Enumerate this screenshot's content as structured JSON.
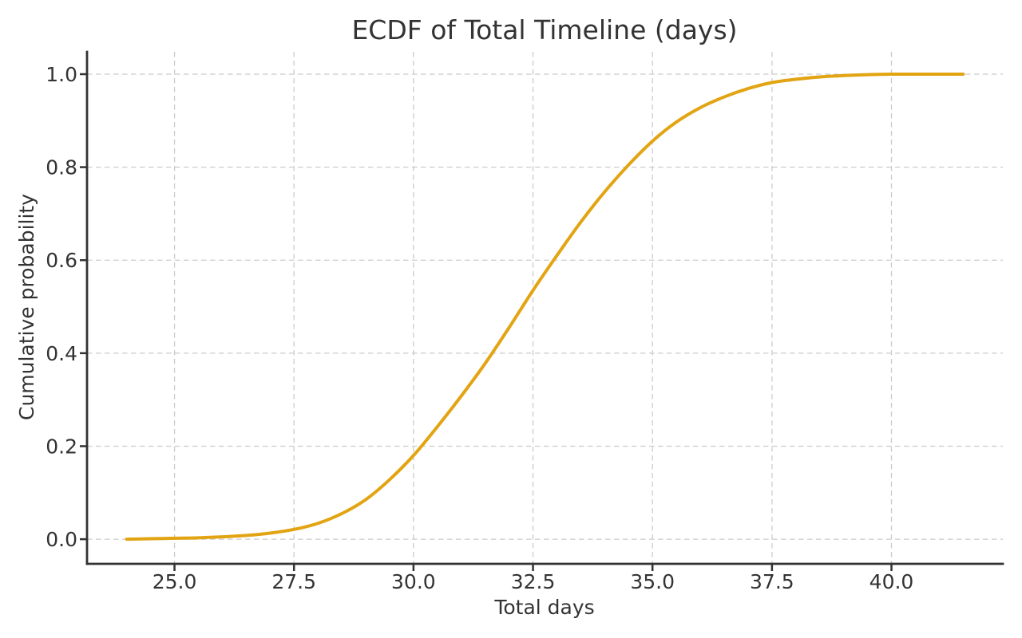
{
  "chart_data": {
    "type": "line",
    "title": "ECDF of Total Timeline (days)",
    "xlabel": "Total days",
    "ylabel": "Cumulative probability",
    "xlim": [
      23.17,
      42.33
    ],
    "ylim": [
      -0.053,
      1.048
    ],
    "x_ticks": [
      25.0,
      27.5,
      30.0,
      32.5,
      35.0,
      37.5,
      40.0
    ],
    "x_tick_labels": [
      "25.0",
      "27.5",
      "30.0",
      "32.5",
      "35.0",
      "37.5",
      "40.0"
    ],
    "y_ticks": [
      0.0,
      0.2,
      0.4,
      0.6,
      0.8,
      1.0
    ],
    "y_tick_labels": [
      "0.0",
      "0.2",
      "0.4",
      "0.6",
      "0.8",
      "1.0"
    ],
    "grid": true,
    "grid_style": "dashed",
    "legend": "none",
    "series": [
      {
        "name": "ECDF",
        "x": [
          24.0,
          24.5,
          25.0,
          25.5,
          26.0,
          26.5,
          27.0,
          27.5,
          28.0,
          28.5,
          29.0,
          29.5,
          30.0,
          30.5,
          31.0,
          31.5,
          32.0,
          32.5,
          33.0,
          33.5,
          34.0,
          34.5,
          35.0,
          35.5,
          36.0,
          36.5,
          37.0,
          37.5,
          38.0,
          38.5,
          39.0,
          39.5,
          40.0,
          40.5,
          41.0,
          41.5
        ],
        "y": [
          0.0,
          0.001,
          0.002,
          0.003,
          0.005,
          0.008,
          0.013,
          0.021,
          0.034,
          0.055,
          0.085,
          0.128,
          0.18,
          0.242,
          0.308,
          0.378,
          0.455,
          0.535,
          0.61,
          0.682,
          0.747,
          0.805,
          0.856,
          0.897,
          0.928,
          0.951,
          0.969,
          0.982,
          0.989,
          0.994,
          0.997,
          0.999,
          1.0,
          1.0,
          1.0,
          1.0
        ]
      }
    ],
    "colors": {
      "line": "#E2A412",
      "grid": "#CBCBCB",
      "spine": "#333333",
      "tick": "#333333",
      "text": "#333333",
      "background": "#FFFFFF"
    }
  }
}
